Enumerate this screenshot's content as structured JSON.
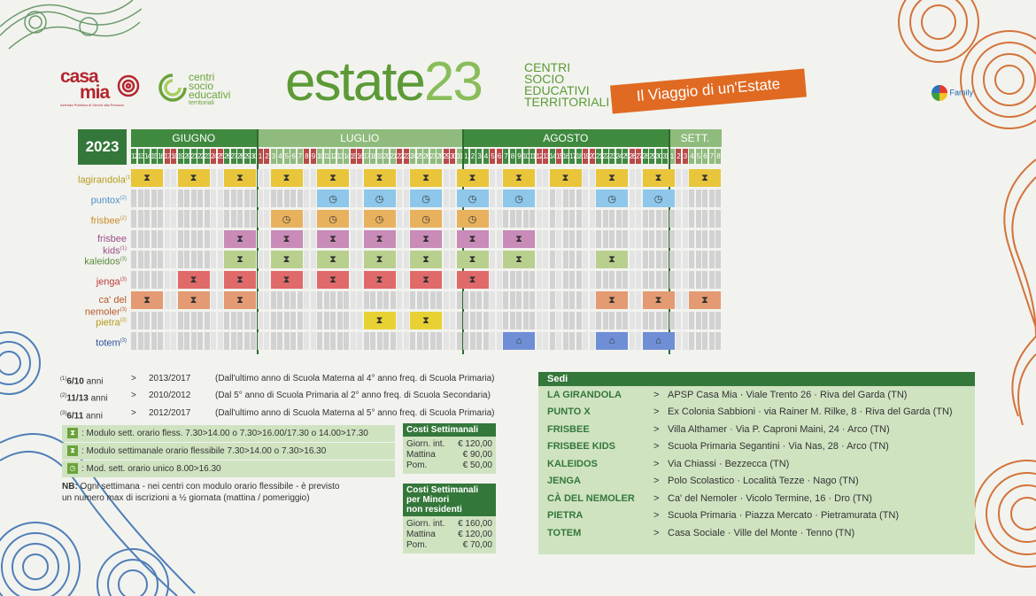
{
  "header": {
    "casamia": {
      "casa": "casa",
      "mia": "mia",
      "sub": "Azienda Pubblica di Servizi alla Persona"
    },
    "centri": {
      "l1": "centri",
      "l2": "socio",
      "l3": "educativi",
      "l4": "territoriali"
    },
    "title_main": "estate",
    "title_year": "23",
    "subtitle": [
      "CENTRI",
      "SOCIO",
      "EDUCATIVI",
      "TERRITORIALI"
    ],
    "banner": "Il Viaggio di un'Estate",
    "family_logo": "Family"
  },
  "calendar": {
    "year": "2023",
    "months": [
      {
        "name": "GIUGNO",
        "start": 0,
        "span": 19,
        "color": "#3f8a3f"
      },
      {
        "name": "LUGLIO",
        "start": 19,
        "span": 31,
        "color": "#8fbb7d"
      },
      {
        "name": "AGOSTO",
        "start": 50,
        "span": 31,
        "color": "#3f8a3f"
      },
      {
        "name": "SETT.",
        "start": 81,
        "span": 8,
        "color": "#8fbb7d"
      }
    ],
    "days": [
      {
        "d": "12",
        "c": "#3f8a3f"
      },
      {
        "d": "13",
        "c": "#3f8a3f"
      },
      {
        "d": "14",
        "c": "#3f8a3f"
      },
      {
        "d": "15",
        "c": "#3f8a3f"
      },
      {
        "d": "16",
        "c": "#3f8a3f"
      },
      {
        "d": "17",
        "c": "#b94a4a"
      },
      {
        "d": "18",
        "c": "#b94a4a"
      },
      {
        "d": "19",
        "c": "#3f8a3f"
      },
      {
        "d": "20",
        "c": "#3f8a3f"
      },
      {
        "d": "21",
        "c": "#3f8a3f"
      },
      {
        "d": "22",
        "c": "#3f8a3f"
      },
      {
        "d": "23",
        "c": "#3f8a3f"
      },
      {
        "d": "24",
        "c": "#b94a4a"
      },
      {
        "d": "25",
        "c": "#b94a4a"
      },
      {
        "d": "26",
        "c": "#3f8a3f"
      },
      {
        "d": "27",
        "c": "#3f8a3f"
      },
      {
        "d": "28",
        "c": "#3f8a3f"
      },
      {
        "d": "29",
        "c": "#3f8a3f"
      },
      {
        "d": "30",
        "c": "#3f8a3f"
      },
      {
        "d": "1",
        "c": "#b94a4a"
      },
      {
        "d": "2",
        "c": "#b94a4a"
      },
      {
        "d": "3",
        "c": "#8fbb7d"
      },
      {
        "d": "4",
        "c": "#8fbb7d"
      },
      {
        "d": "5",
        "c": "#8fbb7d"
      },
      {
        "d": "6",
        "c": "#8fbb7d"
      },
      {
        "d": "7",
        "c": "#8fbb7d"
      },
      {
        "d": "8",
        "c": "#b94a4a"
      },
      {
        "d": "9",
        "c": "#b94a4a"
      },
      {
        "d": "10",
        "c": "#8fbb7d"
      },
      {
        "d": "11",
        "c": "#8fbb7d"
      },
      {
        "d": "12",
        "c": "#8fbb7d"
      },
      {
        "d": "13",
        "c": "#8fbb7d"
      },
      {
        "d": "14",
        "c": "#8fbb7d"
      },
      {
        "d": "15",
        "c": "#b94a4a"
      },
      {
        "d": "16",
        "c": "#b94a4a"
      },
      {
        "d": "17",
        "c": "#8fbb7d"
      },
      {
        "d": "18",
        "c": "#8fbb7d"
      },
      {
        "d": "19",
        "c": "#8fbb7d"
      },
      {
        "d": "20",
        "c": "#8fbb7d"
      },
      {
        "d": "21",
        "c": "#8fbb7d"
      },
      {
        "d": "22",
        "c": "#b94a4a"
      },
      {
        "d": "23",
        "c": "#b94a4a"
      },
      {
        "d": "24",
        "c": "#8fbb7d"
      },
      {
        "d": "25",
        "c": "#8fbb7d"
      },
      {
        "d": "26",
        "c": "#8fbb7d"
      },
      {
        "d": "27",
        "c": "#8fbb7d"
      },
      {
        "d": "28",
        "c": "#8fbb7d"
      },
      {
        "d": "29",
        "c": "#b94a4a"
      },
      {
        "d": "30",
        "c": "#b94a4a"
      },
      {
        "d": "31",
        "c": "#8fbb7d"
      },
      {
        "d": "1",
        "c": "#3f8a3f"
      },
      {
        "d": "2",
        "c": "#3f8a3f"
      },
      {
        "d": "3",
        "c": "#3f8a3f"
      },
      {
        "d": "4",
        "c": "#3f8a3f"
      },
      {
        "d": "5",
        "c": "#b94a4a"
      },
      {
        "d": "6",
        "c": "#b94a4a"
      },
      {
        "d": "7",
        "c": "#3f8a3f"
      },
      {
        "d": "8",
        "c": "#3f8a3f"
      },
      {
        "d": "9",
        "c": "#3f8a3f"
      },
      {
        "d": "10",
        "c": "#3f8a3f"
      },
      {
        "d": "11",
        "c": "#3f8a3f"
      },
      {
        "d": "12",
        "c": "#b94a4a"
      },
      {
        "d": "13",
        "c": "#b94a4a"
      },
      {
        "d": "14",
        "c": "#3f8a3f"
      },
      {
        "d": "15",
        "c": "#b94a4a"
      },
      {
        "d": "16",
        "c": "#3f8a3f"
      },
      {
        "d": "17",
        "c": "#3f8a3f"
      },
      {
        "d": "18",
        "c": "#3f8a3f"
      },
      {
        "d": "19",
        "c": "#b94a4a"
      },
      {
        "d": "20",
        "c": "#b94a4a"
      },
      {
        "d": "21",
        "c": "#3f8a3f"
      },
      {
        "d": "22",
        "c": "#3f8a3f"
      },
      {
        "d": "23",
        "c": "#3f8a3f"
      },
      {
        "d": "24",
        "c": "#3f8a3f"
      },
      {
        "d": "25",
        "c": "#3f8a3f"
      },
      {
        "d": "26",
        "c": "#b94a4a"
      },
      {
        "d": "27",
        "c": "#b94a4a"
      },
      {
        "d": "28",
        "c": "#3f8a3f"
      },
      {
        "d": "29",
        "c": "#3f8a3f"
      },
      {
        "d": "30",
        "c": "#3f8a3f"
      },
      {
        "d": "31",
        "c": "#3f8a3f"
      },
      {
        "d": "1",
        "c": "#8fbb7d"
      },
      {
        "d": "2",
        "c": "#b94a4a"
      },
      {
        "d": "3",
        "c": "#b94a4a"
      },
      {
        "d": "4",
        "c": "#8fbb7d"
      },
      {
        "d": "5",
        "c": "#8fbb7d"
      },
      {
        "d": "6",
        "c": "#8fbb7d"
      },
      {
        "d": "7",
        "c": "#8fbb7d"
      },
      {
        "d": "8",
        "c": "#8fbb7d"
      }
    ],
    "rows": [
      {
        "label": "lagirandola",
        "sup": "(1)",
        "color": "#b59a1a",
        "fill": "#e8c53a",
        "icon": "⧗",
        "blocks": [
          [
            0,
            5
          ],
          [
            7,
            12
          ],
          [
            14,
            19
          ],
          [
            21,
            26
          ],
          [
            28,
            33
          ],
          [
            35,
            40
          ],
          [
            42,
            47
          ],
          [
            49,
            54
          ],
          [
            56,
            61
          ],
          [
            63,
            68
          ],
          [
            70,
            75
          ],
          [
            77,
            82
          ],
          [
            84,
            89
          ]
        ]
      },
      {
        "label": "puntox",
        "sup": "(2)",
        "color": "#4a90c6",
        "fill": "#8ec7ea",
        "icon": "◷",
        "blocks": [
          [
            28,
            33
          ],
          [
            35,
            40
          ],
          [
            42,
            47
          ],
          [
            49,
            54
          ],
          [
            56,
            61
          ],
          [
            70,
            75
          ],
          [
            77,
            82
          ]
        ]
      },
      {
        "label": "frisbee",
        "sup": "(2)",
        "color": "#c9892a",
        "fill": "#e8b15e",
        "icon": "◷",
        "blocks": [
          [
            21,
            26
          ],
          [
            28,
            33
          ],
          [
            35,
            40
          ],
          [
            42,
            47
          ],
          [
            49,
            54
          ]
        ]
      },
      {
        "label": "frisbee kids",
        "sup": "(1)",
        "color": "#9a4f86",
        "fill": "#c98bb8",
        "icon": "⧗",
        "blocks": [
          [
            14,
            19
          ],
          [
            21,
            26
          ],
          [
            28,
            33
          ],
          [
            35,
            40
          ],
          [
            42,
            47
          ],
          [
            49,
            54
          ],
          [
            56,
            61
          ]
        ]
      },
      {
        "label": "kaleidos",
        "sup": "(3)",
        "color": "#5b8a3a",
        "fill": "#b9cf8e",
        "icon": "⧗",
        "blocks": [
          [
            14,
            19
          ],
          [
            21,
            26
          ],
          [
            28,
            33
          ],
          [
            35,
            40
          ],
          [
            42,
            47
          ],
          [
            49,
            54
          ],
          [
            56,
            61
          ],
          [
            70,
            75
          ]
        ]
      },
      {
        "label": "jenga",
        "sup": "(3)",
        "color": "#b93a3a",
        "fill": "#e06a6a",
        "icon": "⧗",
        "blocks": [
          [
            7,
            12
          ],
          [
            14,
            19
          ],
          [
            21,
            26
          ],
          [
            28,
            33
          ],
          [
            35,
            40
          ],
          [
            42,
            47
          ],
          [
            49,
            54
          ]
        ]
      },
      {
        "label": "ca' del nemoler",
        "sup": "(3)",
        "color": "#b6582a",
        "fill": "#e49a72",
        "icon": "⧗",
        "blocks": [
          [
            0,
            5
          ],
          [
            7,
            12
          ],
          [
            14,
            19
          ],
          [
            70,
            75
          ],
          [
            77,
            82
          ],
          [
            84,
            89
          ]
        ]
      },
      {
        "label": "pietra",
        "sup": "(3)",
        "color": "#b59a1a",
        "fill": "#e8d233",
        "icon": "⧗",
        "blocks": [
          [
            35,
            40
          ],
          [
            42,
            47
          ]
        ]
      },
      {
        "label": "totem",
        "sup": "(3)",
        "color": "#2f4f9a",
        "fill": "#6f8ed6",
        "icon": "⌂",
        "blocks": [
          [
            56,
            61
          ],
          [
            70,
            75
          ],
          [
            77,
            82
          ]
        ]
      }
    ]
  },
  "notes": [
    {
      "sup": "(1)",
      "ages": "6/10",
      "unit": " anni",
      "gt": ">",
      "years": "2013/2017",
      "desc": "(Dall'ultimo anno di Scuola Materna al 4° anno freq. di Scuola Primaria)"
    },
    {
      "sup": "(2)",
      "ages": "11/13",
      "unit": " anni",
      "gt": ">",
      "years": "2010/2012",
      "desc": "(Dal 5° anno di Scuola Primaria al 2° anno freq. di Scuola Secondaria)"
    },
    {
      "sup": "(3)",
      "ages": "6/11",
      "unit": " anni",
      "gt": ">",
      "years": "2012/2017",
      "desc": "(Dall'ultimo anno di Scuola Materna al 5° anno freq. di Scuola Primaria)"
    }
  ],
  "legend": [
    {
      "icon": "⧗",
      "text": ": Modulo sett. orario fless. 7.30>14.00 o 7.30>16.00/17.30 o 14.00>17.30"
    },
    {
      "icon": "⧗",
      "text": ": Modulo settimanale orario flessibile 7.30>14.00 o 7.30>16.30"
    },
    {
      "icon": "◷",
      "text": ": Mod. sett. orario unico 8.00>16.30"
    }
  ],
  "nb": {
    "label": "NB:",
    "line1": " Ogni settimana - nei centri con modulo orario flessibile - è previsto",
    "line2": "un numero max di iscrizioni a ½ giornata (mattina / pomeriggio)"
  },
  "costs": {
    "title": "Costi Settimanali",
    "rows": [
      {
        "k": "Giorn. int.",
        "v": "€ 120,00"
      },
      {
        "k": "Mattina",
        "v": "€ 90,00"
      },
      {
        "k": "Pom.",
        "v": "€ 50,00"
      }
    ]
  },
  "costs_nonres": {
    "title1": "Costi Settimanali",
    "title2": "per Minori",
    "title3": "non residenti",
    "rows": [
      {
        "k": "Giorn. int.",
        "v": "€ 160,00"
      },
      {
        "k": "Mattina",
        "v": "€ 120,00"
      },
      {
        "k": "Pom.",
        "v": "€ 70,00"
      }
    ]
  },
  "sedi": {
    "title": "Sedi",
    "rows": [
      {
        "name": "LA GIRANDOLA",
        "arrow": ">",
        "addr": "APSP Casa Mia · Viale Trento 26 · Riva del Garda (TN)"
      },
      {
        "name": "PUNTO X",
        "arrow": ">",
        "addr": "Ex Colonia Sabbioni · via Rainer M. Rilke, 8 · Riva del Garda (TN)"
      },
      {
        "name": "FRISBEE",
        "arrow": ">",
        "addr": "Villa Althamer · Via P. Caproni Maini, 24 · Arco (TN)"
      },
      {
        "name": "FRISBEE KIDS",
        "arrow": ">",
        "addr": "Scuola Primaria Segantini · Via Nas, 28 · Arco (TN)"
      },
      {
        "name": "KALEIDOS",
        "arrow": ">",
        "addr": "Via Chiassi · Bezzecca (TN)"
      },
      {
        "name": "JENGA",
        "arrow": ">",
        "addr": "Polo Scolastico · Località Tezze · Nago (TN)"
      },
      {
        "name": "CÀ DEL NEMOLER",
        "arrow": ">",
        "addr": "Ca' del Nemoler · Vicolo Termine, 16 · Dro (TN)"
      },
      {
        "name": "PIETRA",
        "arrow": ">",
        "addr": "Scuola Primaria · Piazza Mercato · Pietramurata (TN)"
      },
      {
        "name": "TOTEM",
        "arrow": ">",
        "addr": "Casa Sociale · Ville del Monte · Tenno (TN)"
      }
    ]
  }
}
